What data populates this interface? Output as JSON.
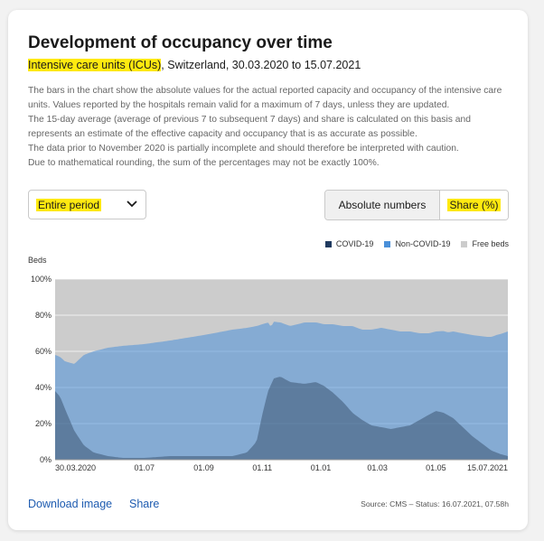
{
  "header": {
    "title": "Development of occupancy over time",
    "subtitle_highlight": "Intensive care units (ICUs)",
    "subtitle_rest": ", Switzerland, 30.03.2020 to 15.07.2021"
  },
  "description": [
    "The bars in the chart show the absolute values for the actual reported capacity and occupancy of the intensive care units. Values reported by the hospitals remain valid for a maximum of 7 days, unless they are updated.",
    "The 15-day average (average of previous 7 to subsequent 7 days) and share is calculated on this basis and represents an estimate of the effective capacity and occupancy that is as accurate as possible.",
    "The data prior to November 2020 is partially incomplete and should therefore be interpreted with caution.",
    "Due to mathematical rounding, the sum of the percentages may not be exactly 100%."
  ],
  "controls": {
    "period_label": "Entire period",
    "absolute_label": "Absolute numbers",
    "share_label": "Share (%)"
  },
  "footer": {
    "download_label": "Download image",
    "share_label": "Share",
    "source_text": "Source: CMS – Status: 16.07.2021, 07.58h"
  },
  "colors": {
    "covid": "#1f3a5f",
    "non_covid": "#4a90d9",
    "free_beds": "#cccccc",
    "highlight": "#ffe90f",
    "link": "#1d5bb0"
  },
  "chart_data": {
    "type": "area",
    "stacked": true,
    "ylabel": "Beds",
    "ylim": [
      0,
      100
    ],
    "yticks": [
      "0%",
      "20%",
      "40%",
      "60%",
      "80%",
      "100%"
    ],
    "xticks": [
      "30.03.2020",
      "01.07",
      "01.09",
      "01.11",
      "01.01",
      "01.03",
      "01.05",
      "15.07.2021"
    ],
    "xtick_days": [
      0,
      93,
      155,
      216,
      277,
      336,
      397,
      472
    ],
    "total_days": 472,
    "legend": [
      "COVID-19",
      "Non-COVID-19",
      "Free beds"
    ],
    "series": [
      {
        "name": "COVID-19",
        "x": [
          0,
          5,
          12,
          20,
          30,
          40,
          55,
          70,
          93,
          120,
          155,
          185,
          200,
          210,
          216,
          222,
          228,
          235,
          245,
          260,
          272,
          280,
          290,
          300,
          310,
          320,
          330,
          340,
          350,
          360,
          370,
          380,
          390,
          397,
          405,
          415,
          425,
          435,
          445,
          455,
          465,
          472
        ],
        "values": [
          38,
          35,
          26,
          16,
          8,
          4,
          2,
          1,
          1,
          2,
          2,
          2,
          4,
          10,
          25,
          38,
          45,
          46,
          43,
          42,
          43,
          41,
          37,
          32,
          26,
          22,
          19,
          18,
          17,
          18,
          19,
          22,
          25,
          27,
          26,
          23,
          18,
          13,
          9,
          5,
          3,
          2
        ]
      },
      {
        "name": "Non-COVID-19",
        "x": [
          0,
          5,
          10,
          20,
          30,
          40,
          55,
          70,
          93,
          120,
          155,
          185,
          200,
          210,
          216,
          225,
          235,
          245,
          260,
          272,
          280,
          290,
          300,
          310,
          320,
          330,
          340,
          350,
          360,
          370,
          380,
          390,
          397,
          410,
          420,
          435,
          450,
          460,
          472
        ],
        "values": [
          20,
          22,
          26,
          37,
          50,
          56,
          60,
          62,
          63,
          64,
          67,
          70,
          69,
          64,
          50,
          32,
          30,
          31,
          34,
          33,
          34,
          38,
          42,
          48,
          50,
          53,
          55,
          55,
          53,
          52,
          48,
          45,
          44,
          46,
          50,
          56,
          61,
          65,
          69
        ]
      },
      {
        "name": "Free beds",
        "x": [
          0,
          472
        ],
        "values": [
          null,
          null
        ]
      }
    ]
  }
}
